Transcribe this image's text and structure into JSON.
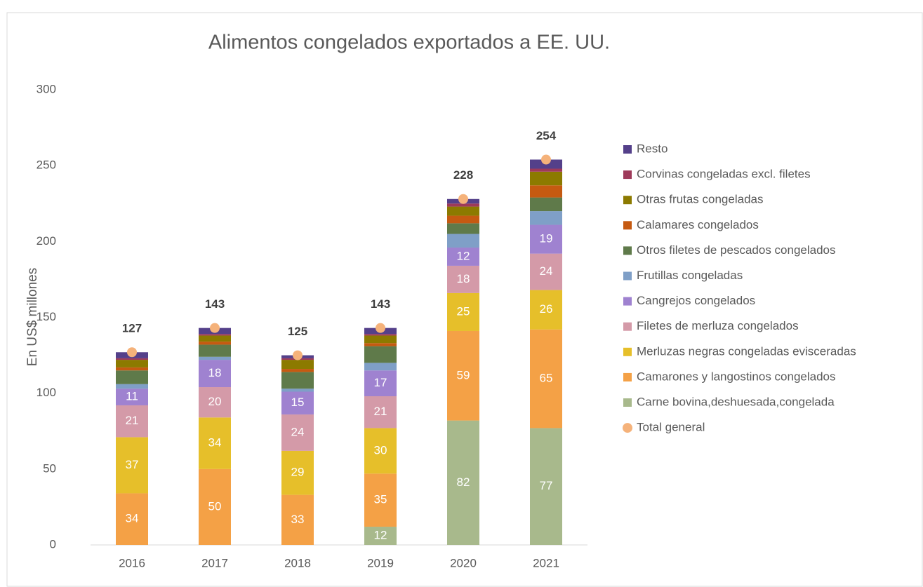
{
  "chart_data": {
    "type": "stacked_bar",
    "title": "Alimentos congelados exportados a EE. UU.",
    "y_label": "En US$ millones",
    "categories": [
      "2016",
      "2017",
      "2018",
      "2019",
      "2020",
      "2021"
    ],
    "ylim": [
      0,
      300
    ],
    "yticks": [
      0,
      50,
      100,
      150,
      200,
      250,
      300
    ],
    "legend": "right",
    "series": [
      {
        "name": "Carne bovina,deshuesada,congelada",
        "color": "#a8b98c",
        "data_labels": true,
        "values": [
          0,
          0,
          0,
          12,
          82,
          77
        ]
      },
      {
        "name": "Camarones y langostinos congelados",
        "color": "#f4a146",
        "data_labels": true,
        "values": [
          34,
          50,
          33,
          35,
          59,
          65
        ]
      },
      {
        "name": "Merluzas negras congeladas evisceradas",
        "color": "#e6bf2a",
        "data_labels": true,
        "values": [
          37,
          34,
          29,
          30,
          25,
          26
        ]
      },
      {
        "name": "Filetes de merluza congelados",
        "color": "#d49aa8",
        "data_labels": true,
        "values": [
          21,
          20,
          24,
          21,
          18,
          24
        ]
      },
      {
        "name": "Cangrejos congelados",
        "color": "#9f82d0",
        "data_labels": true,
        "values": [
          11,
          18,
          15,
          17,
          12,
          19
        ]
      },
      {
        "name": "Frutillas congeladas",
        "color": "#7f9fc7",
        "values": [
          3,
          2,
          2,
          5,
          9,
          9
        ]
      },
      {
        "name": "Otros filetes de pescados congelados",
        "color": "#5f7a4a",
        "values": [
          9,
          8,
          11,
          11,
          7,
          9
        ]
      },
      {
        "name": "Calamares congelados",
        "color": "#c55a11",
        "values": [
          2,
          2,
          2,
          2,
          5,
          8
        ]
      },
      {
        "name": "Otras frutas congeladas",
        "color": "#8c7a00",
        "values": [
          5,
          4,
          6,
          5,
          6,
          9
        ]
      },
      {
        "name": "Corvinas congeladas excl. filetes",
        "color": "#9e3a5a",
        "values": [
          1,
          1,
          1,
          1,
          2,
          2
        ]
      },
      {
        "name": "Resto",
        "color": "#54408a",
        "values": [
          4,
          4,
          2,
          4,
          3,
          6
        ]
      }
    ],
    "total": {
      "name": "Total general",
      "color": "#f5b27a",
      "values": [
        127,
        143,
        125,
        143,
        228,
        254
      ]
    }
  }
}
